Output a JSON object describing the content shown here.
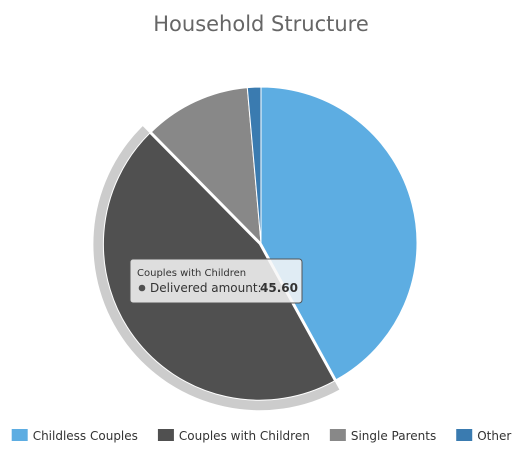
{
  "chart_data": {
    "type": "pie",
    "title": "Household Structure",
    "categories": [
      "Childless Couples",
      "Couples with Children",
      "Single Parents",
      "Other"
    ],
    "values": [
      42.0,
      45.6,
      11.0,
      1.4
    ],
    "colors": [
      "#5dade2",
      "#505050",
      "#888888",
      "#3a7bb0"
    ],
    "highlighted": "Couples with Children",
    "legend": "bottom",
    "tooltip": {
      "title": "Couples with Children",
      "series_label": "Delivered amount",
      "value": "45.60"
    }
  }
}
